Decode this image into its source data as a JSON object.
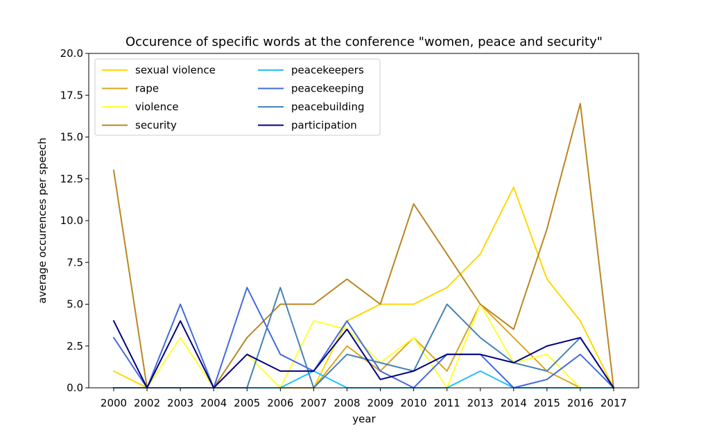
{
  "chart_data": {
    "type": "line",
    "title": "Occurence of specific words at the conference \"women, peace and security\"",
    "xlabel": "year",
    "ylabel": "average occurences per speech",
    "categories": [
      "2000",
      "2002",
      "2003",
      "2004",
      "2005",
      "2006",
      "2007",
      "2008",
      "2009",
      "2010",
      "2011",
      "2013",
      "2014",
      "2015",
      "2016",
      "2017"
    ],
    "ylim": [
      0,
      20
    ],
    "yticks": [
      "0.0",
      "2.5",
      "5.0",
      "7.5",
      "10.0",
      "12.5",
      "15.0",
      "17.5",
      "20.0"
    ],
    "grid": false,
    "legend_placement": "top-left",
    "legend_columns": 2,
    "series": [
      {
        "name": "sexual violence",
        "color": "#FFD700",
        "values": [
          1,
          0,
          0,
          0,
          0,
          0,
          0,
          4,
          5,
          5,
          6,
          8,
          12,
          6.5,
          4,
          0
        ]
      },
      {
        "name": "rape",
        "color": "#DAA520",
        "values": [
          0,
          0,
          0,
          0,
          0,
          0,
          0,
          2.5,
          1,
          3,
          1,
          5,
          3,
          1,
          0,
          0
        ]
      },
      {
        "name": "violence",
        "color": "#FFFF33",
        "values": [
          0,
          0,
          3,
          0,
          2,
          0,
          4,
          3.5,
          1.5,
          3,
          0,
          5,
          1.5,
          2,
          0,
          0
        ]
      },
      {
        "name": "security",
        "color": "#B8861F",
        "values": [
          13,
          0,
          0,
          0,
          3,
          5,
          5,
          6.5,
          5,
          11,
          8,
          5,
          3.5,
          9.5,
          17,
          0
        ]
      },
      {
        "name": "peacekeepers",
        "color": "#1EBFFF",
        "values": [
          0,
          0,
          0,
          0,
          0,
          0,
          1,
          0,
          0,
          0,
          0,
          1,
          0,
          0,
          0,
          0
        ]
      },
      {
        "name": "peacekeeping",
        "color": "#4169E1",
        "values": [
          3,
          0,
          5,
          0,
          6,
          2,
          1,
          4,
          1,
          0,
          2,
          2,
          0,
          0.5,
          2,
          0
        ]
      },
      {
        "name": "peacebuilding",
        "color": "#4682B4",
        "values": [
          0,
          0,
          0,
          0,
          0,
          6,
          0,
          2,
          1.5,
          1,
          5,
          3,
          1.5,
          1,
          3,
          0
        ]
      },
      {
        "name": "participation",
        "color": "#000080",
        "values": [
          4,
          0,
          4,
          0,
          2,
          1,
          1,
          3.5,
          0.5,
          1,
          2,
          2,
          1.5,
          2.5,
          3,
          0
        ]
      }
    ]
  }
}
